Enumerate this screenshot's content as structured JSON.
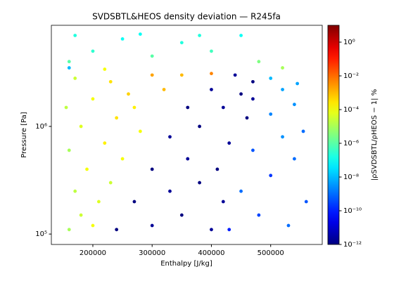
{
  "chart_data": {
    "type": "scatter",
    "title": "SVDSBTL&HEOS density deviation — R245fa",
    "x_label": "Enthalpy [J/kg]",
    "y_label": "Pressure [Pa]",
    "colorbar_label": "|ρSVDSBTL/ρHEOS − 1| %",
    "colormap": "jet",
    "y_scale": "log",
    "color_scale": "log",
    "xlim": [
      130000,
      587000
    ],
    "ylim": [
      80000,
      8700000
    ],
    "xticks": [
      200000,
      300000,
      400000,
      500000
    ],
    "yticks": [
      {
        "value": 100000,
        "label": "10⁵"
      },
      {
        "value": 1000000,
        "label": "10⁶"
      }
    ],
    "clim": [
      1e-12,
      10
    ],
    "cticks": [
      {
        "value": 1,
        "label": "10⁰"
      },
      {
        "value": 0.01,
        "label": "10⁻²"
      },
      {
        "value": 0.0001,
        "label": "10⁻⁴"
      },
      {
        "value": 1e-06,
        "label": "10⁻⁶"
      },
      {
        "value": 1e-08,
        "label": "10⁻⁸"
      },
      {
        "value": 1e-10,
        "label": "10⁻¹⁰"
      },
      {
        "value": 1e-12,
        "label": "10⁻¹²"
      }
    ],
    "x": [
      160000,
      180000,
      200000,
      170000,
      210000,
      190000,
      230000,
      160000,
      220000,
      250000,
      180000,
      240000,
      280000,
      200000,
      260000,
      320000,
      170000,
      300000,
      350000,
      400000,
      230000,
      155000,
      270000,
      240000,
      300000,
      350000,
      400000,
      270000,
      330000,
      380000,
      420000,
      300000,
      360000,
      410000,
      330000,
      380000,
      430000,
      360000,
      420000,
      460000,
      400000,
      450000,
      440000,
      470000,
      470000,
      430000,
      480000,
      530000,
      560000,
      450000,
      500000,
      540000,
      470000,
      520000,
      555000,
      500000,
      540000,
      520000,
      500000,
      545000,
      160000,
      200000,
      250000,
      300000,
      350000,
      400000,
      450000,
      480000,
      520000,
      170000,
      280000,
      380000,
      220000,
      160000
    ],
    "y": [
      110000,
      150000,
      120000,
      250000,
      200000,
      400000,
      300000,
      600000,
      700000,
      500000,
      1000000,
      1200000,
      900000,
      1800000,
      2000000,
      2200000,
      2800000,
      3000000,
      3000000,
      3100000,
      2600000,
      1500000,
      1500000,
      110000,
      120000,
      150000,
      110000,
      200000,
      250000,
      300000,
      200000,
      400000,
      500000,
      400000,
      800000,
      1000000,
      700000,
      1500000,
      1500000,
      1200000,
      2200000,
      2000000,
      3000000,
      2600000,
      1800000,
      110000,
      150000,
      120000,
      200000,
      250000,
      350000,
      500000,
      600000,
      800000,
      900000,
      1300000,
      1600000,
      2200000,
      2800000,
      2500000,
      4000000,
      5000000,
      6500000,
      4500000,
      6000000,
      5000000,
      7000000,
      4000000,
      3500000,
      7000000,
      7200000,
      7000000,
      3400000,
      3500000
    ],
    "values": [
      1e-05,
      3e-05,
      0.0001,
      2e-05,
      5e-05,
      0.0001,
      3e-05,
      1e-05,
      0.0002,
      0.0001,
      5e-05,
      0.0003,
      0.0001,
      0.0001,
      0.0005,
      0.001,
      3e-05,
      0.002,
      0.001,
      0.005,
      0.0003,
      2e-05,
      0.0002,
      1e-12,
      2e-12,
      1e-12,
      2e-12,
      1e-12,
      2e-12,
      1e-12,
      2e-12,
      1e-12,
      2e-12,
      1e-12,
      2e-12,
      1e-12,
      2e-12,
      1e-12,
      2e-12,
      1e-12,
      2e-12,
      1e-12,
      2e-12,
      1e-12,
      2e-12,
      1e-10,
      3e-10,
      1e-09,
      5e-10,
      1e-09,
      2e-10,
      1e-09,
      5e-10,
      3e-09,
      1e-09,
      2e-09,
      3e-09,
      5e-09,
      1e-08,
      5e-09,
      1e-06,
      3e-07,
      1e-07,
      1e-06,
      2e-07,
      5e-07,
      1e-07,
      3e-06,
      1e-05,
      2e-07,
      1e-07,
      2e-07,
      0.0001,
      1e-08
    ]
  }
}
